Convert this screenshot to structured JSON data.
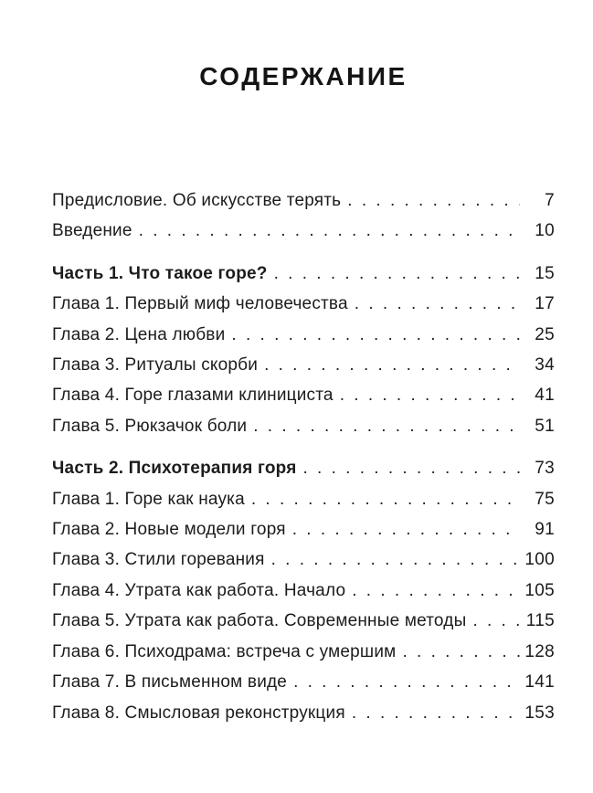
{
  "page": {
    "title": "СОДЕРЖАНИЕ",
    "text_color": "#1c1c1c",
    "background_color": "#ffffff"
  },
  "toc": {
    "groups": [
      {
        "items": [
          {
            "label": "Предисловие. Об искусстве терять",
            "page": "7",
            "bold": false
          },
          {
            "label": "Введение",
            "page": "10",
            "bold": false
          }
        ]
      },
      {
        "items": [
          {
            "label": "Часть 1. Что такое горе?",
            "page": "15",
            "bold": true
          },
          {
            "label": "Глава 1. Первый миф человечества",
            "page": "17",
            "bold": false
          },
          {
            "label": "Глава 2. Цена любви",
            "page": "25",
            "bold": false
          },
          {
            "label": "Глава 3. Ритуалы скорби",
            "page": "34",
            "bold": false
          },
          {
            "label": "Глава 4. Горе глазами клинициста",
            "page": "41",
            "bold": false
          },
          {
            "label": "Глава 5. Рюкзачок боли",
            "page": "51",
            "bold": false
          }
        ]
      },
      {
        "items": [
          {
            "label": "Часть 2. Психотерапия горя",
            "page": "73",
            "bold": true
          },
          {
            "label": "Глава 1. Горе как наука",
            "page": "75",
            "bold": false
          },
          {
            "label": "Глава 2. Новые модели горя",
            "page": "91",
            "bold": false
          },
          {
            "label": "Глава 3. Стили горевания",
            "page": "100",
            "bold": false
          },
          {
            "label": "Глава 4. Утрата как работа. Начало",
            "page": "105",
            "bold": false
          },
          {
            "label": "Глава 5. Утрата как работа. Современные методы",
            "page": "115",
            "bold": false
          },
          {
            "label": "Глава 6. Психодрама: встреча с умершим",
            "page": "128",
            "bold": false
          },
          {
            "label": "Глава 7. В письменном виде",
            "page": "141",
            "bold": false
          },
          {
            "label": "Глава 8. Смысловая реконструкция",
            "page": "153",
            "bold": false
          }
        ]
      }
    ]
  }
}
